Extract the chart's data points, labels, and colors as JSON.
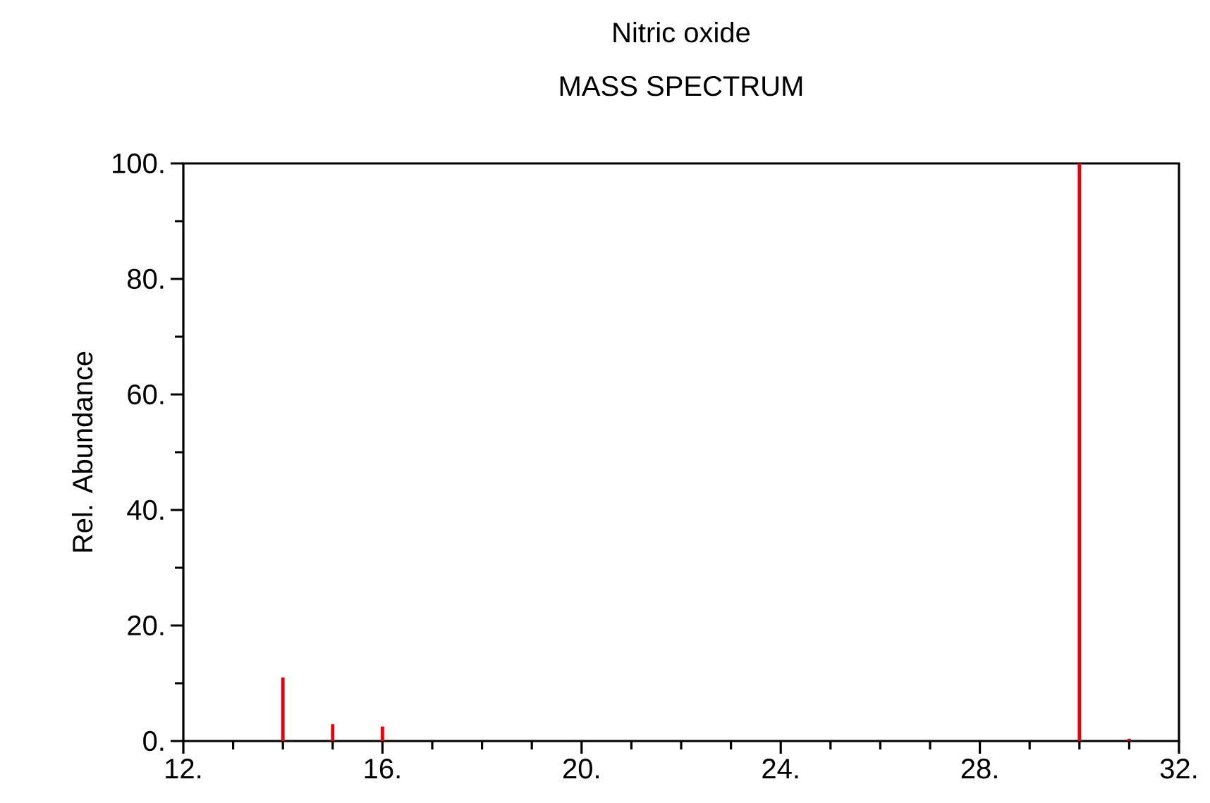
{
  "chart_data": {
    "type": "bar",
    "title": "Nitric oxide",
    "subtitle": "MASS SPECTRUM",
    "ylabel": "Rel. Abundance",
    "x": [
      14,
      15,
      16,
      30,
      31
    ],
    "values": [
      11,
      2.9,
      2.5,
      100,
      0.4
    ],
    "color": "#e8000b",
    "xlim": [
      12,
      32
    ],
    "xticks": [
      {
        "value": 12,
        "label": "12."
      },
      {
        "value": 16,
        "label": "16."
      },
      {
        "value": 20,
        "label": "20."
      },
      {
        "value": 24,
        "label": "24."
      },
      {
        "value": 28,
        "label": "28."
      },
      {
        "value": 32,
        "label": "32."
      }
    ],
    "ylim": [
      0,
      100
    ],
    "yticks": [
      {
        "value": 0,
        "label": "0."
      },
      {
        "value": 20,
        "label": "20."
      },
      {
        "value": 40,
        "label": "40."
      },
      {
        "value": 60,
        "label": "60."
      },
      {
        "value": 80,
        "label": "80."
      },
      {
        "value": 100,
        "label": "100."
      }
    ],
    "grid": false
  }
}
